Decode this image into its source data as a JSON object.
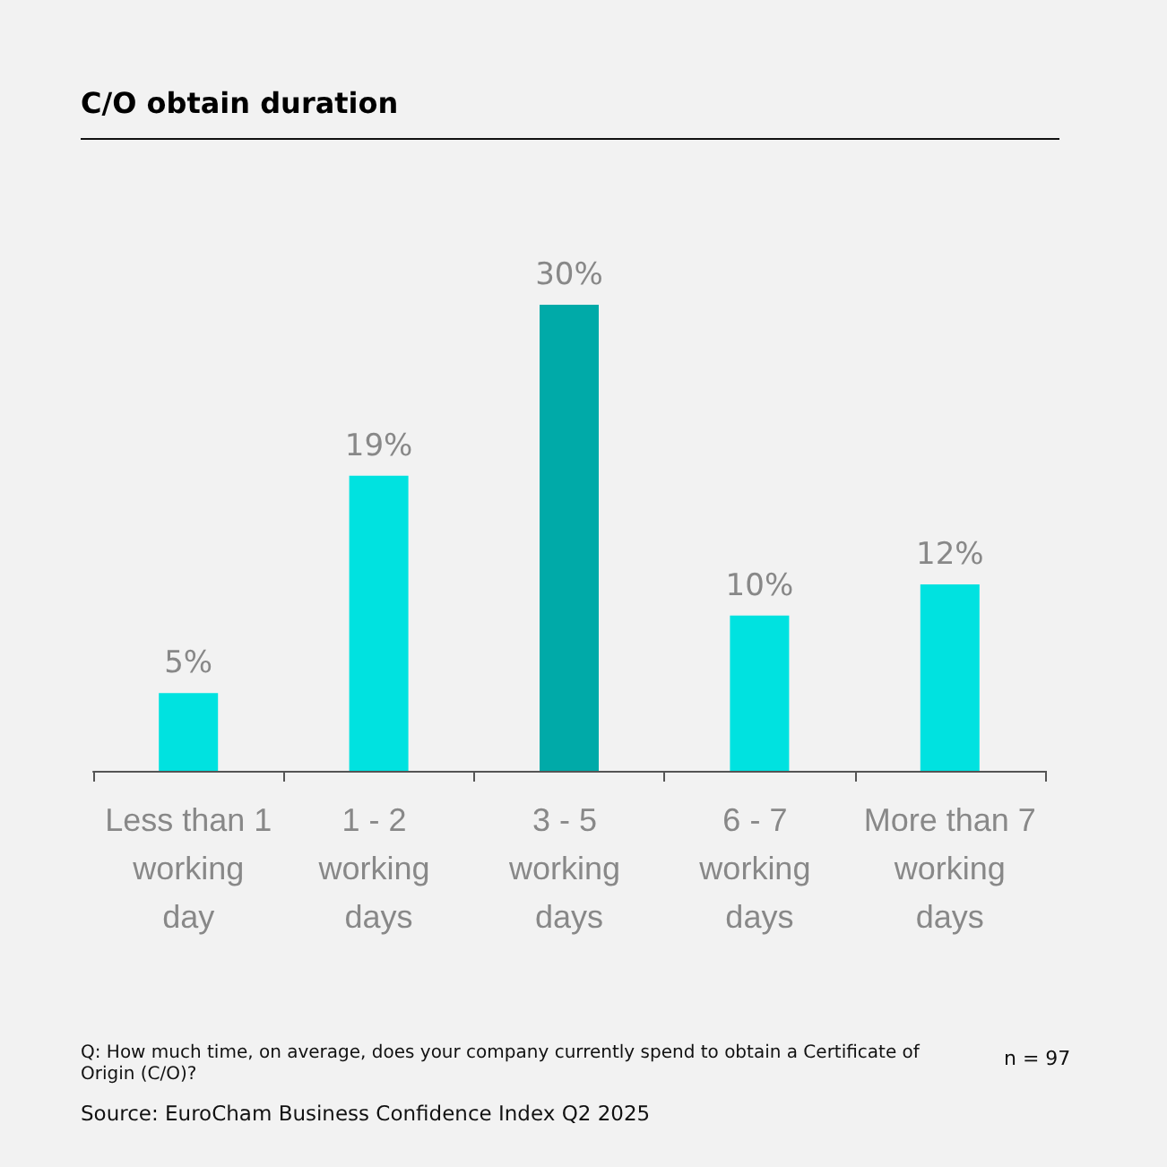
{
  "chart_data": {
    "type": "bar",
    "title": "C/O obtain duration",
    "categories": [
      "Less than 1 working day",
      "1 - 2 working days",
      "3 - 5 working days",
      "6 - 7 working days",
      "More than 7 working days"
    ],
    "values": [
      5,
      19,
      30,
      10,
      12
    ],
    "colors": [
      "#00e2e0",
      "#00e2e0",
      "#00aaa8",
      "#00e2e0",
      "#00e2e0"
    ],
    "value_labels": [
      "5%",
      "19%",
      "30%",
      "10%",
      "12%"
    ],
    "annotations": [
      "Q: How much time, on average, does your company currently spend to obtain a Certificate of Origin (C/O)?",
      "n = 97",
      "Source: EuroCham Business Confidence Index Q2 2025"
    ]
  }
}
